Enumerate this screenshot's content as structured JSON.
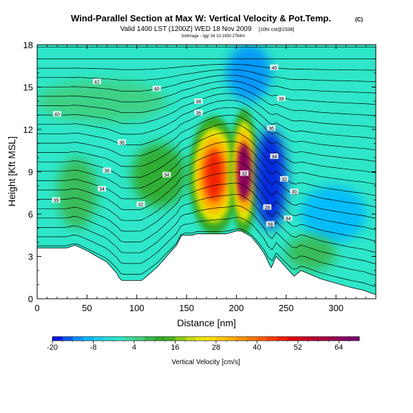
{
  "chart_data": {
    "type": "heatmap",
    "title": "Wind-Parallel Section at Max W: Vertical Velocity & Pot.Temp.",
    "title_mark": "(C)",
    "subtitle": "Valid 1400 LST (1200Z) WED 18 Nov 2009",
    "subtitle_note": "[10hr cst@2338]",
    "small_line": "bxtImage - /gg/ 34 10.1930 2764m",
    "xlabel": "Distance [nm]",
    "ylabel": "Height [Kft MSL]",
    "xlim": [
      0,
      340
    ],
    "ylim": [
      0,
      18
    ],
    "xticks": [
      0,
      50,
      100,
      150,
      200,
      250,
      300
    ],
    "yticks": [
      0,
      3,
      6,
      9,
      12,
      15,
      18
    ],
    "colorbar": {
      "label": "Vertical Velocity [cm/s]",
      "min": -20,
      "max": 70,
      "ticks": [
        -20,
        -8,
        4,
        16,
        28,
        40,
        52,
        64
      ],
      "bands": [
        {
          "from": -20,
          "to": -17,
          "color": "#0018e0"
        },
        {
          "from": -17,
          "to": -14,
          "color": "#0058f0"
        },
        {
          "from": -14,
          "to": -11,
          "color": "#0090ff"
        },
        {
          "from": -11,
          "to": -8,
          "color": "#00b8ff"
        },
        {
          "from": -8,
          "to": -5,
          "color": "#20cce8"
        },
        {
          "from": -5,
          "to": -2,
          "color": "#28dcd8"
        },
        {
          "from": -2,
          "to": 1,
          "color": "#2ee6c8"
        },
        {
          "from": 1,
          "to": 4,
          "color": "#3cdca0"
        },
        {
          "from": 4,
          "to": 7,
          "color": "#40d080"
        },
        {
          "from": 7,
          "to": 10,
          "color": "#3ab850"
        },
        {
          "from": 10,
          "to": 13,
          "color": "#30a828"
        },
        {
          "from": 13,
          "to": 16,
          "color": "#48b020"
        },
        {
          "from": 16,
          "to": 19,
          "color": "#88c818"
        },
        {
          "from": 19,
          "to": 22,
          "color": "#c0dc10"
        },
        {
          "from": 22,
          "to": 25,
          "color": "#e8e800"
        },
        {
          "from": 25,
          "to": 28,
          "color": "#ffe000"
        },
        {
          "from": 28,
          "to": 31,
          "color": "#ffc800"
        },
        {
          "from": 31,
          "to": 34,
          "color": "#ffb000"
        },
        {
          "from": 34,
          "to": 37,
          "color": "#ff9400"
        },
        {
          "from": 37,
          "to": 40,
          "color": "#ff7800"
        },
        {
          "from": 40,
          "to": 43,
          "color": "#ff5a00"
        },
        {
          "from": 43,
          "to": 46,
          "color": "#f83c00"
        },
        {
          "from": 46,
          "to": 49,
          "color": "#f02000"
        },
        {
          "from": 49,
          "to": 52,
          "color": "#e00010"
        },
        {
          "from": 52,
          "to": 55,
          "color": "#cc0020"
        },
        {
          "from": 55,
          "to": 58,
          "color": "#b80030"
        },
        {
          "from": 58,
          "to": 61,
          "color": "#a80040"
        },
        {
          "from": 61,
          "to": 64,
          "color": "#980050"
        },
        {
          "from": 64,
          "to": 67,
          "color": "#880060"
        },
        {
          "from": 67,
          "to": 70,
          "color": "#7a0070"
        }
      ]
    },
    "terrain_profile": {
      "x": [
        0,
        30,
        38,
        50,
        60,
        70,
        75,
        80,
        82,
        85,
        95,
        105,
        110,
        120,
        125,
        130,
        140,
        145,
        150,
        155,
        160,
        190,
        200,
        205,
        215,
        222,
        228,
        232,
        235,
        240,
        245,
        250,
        258,
        265,
        275,
        285,
        295,
        305,
        315,
        328,
        335,
        340
      ],
      "height": [
        3.6,
        3.6,
        3.8,
        3.4,
        3.0,
        2.6,
        2.2,
        1.8,
        1.5,
        1.3,
        1.3,
        1.3,
        1.6,
        2.2,
        2.6,
        3.0,
        3.8,
        4.5,
        4.5,
        4.5,
        4.6,
        4.6,
        4.8,
        4.8,
        4.4,
        3.8,
        3.2,
        2.6,
        2.2,
        3.0,
        2.6,
        2.2,
        1.6,
        2.0,
        1.7,
        1.4,
        1.2,
        1.0,
        0.8,
        0.6,
        0.4,
        0.3
      ]
    },
    "velocity_features": [
      {
        "name": "broad-cyan-background",
        "x_range": [
          0,
          340
        ],
        "y_range": [
          0,
          18
        ],
        "value": 0
      },
      {
        "name": "upper-left-green-layer",
        "x_range": [
          0,
          130
        ],
        "y_range": [
          12.5,
          15.5
        ],
        "value": 6
      },
      {
        "name": "left-green-lobe",
        "x_range": [
          20,
          60
        ],
        "y_range": [
          5,
          10
        ],
        "value": 8
      },
      {
        "name": "mid-green-lobe",
        "x_range": [
          95,
          150
        ],
        "y_range": [
          6.5,
          11
        ],
        "value": 10
      },
      {
        "name": "upper-blue-column",
        "x_range": [
          190,
          235
        ],
        "y_range": [
          14,
          18
        ],
        "value": -12
      },
      {
        "name": "left-updraft-core",
        "x_range": [
          155,
          200
        ],
        "y_range": [
          5,
          12.5
        ],
        "value": 48
      },
      {
        "name": "right-updraft-core",
        "x_range": [
          195,
          220
        ],
        "y_range": [
          5,
          13
        ],
        "value": 66
      },
      {
        "name": "lee-downdraft",
        "x_range": [
          218,
          250
        ],
        "y_range": [
          5,
          12
        ],
        "value": -18
      },
      {
        "name": "right-blue-pocket",
        "x_range": [
          265,
          330
        ],
        "y_range": [
          4,
          8
        ],
        "value": -10
      },
      {
        "name": "low-right-green",
        "x_range": [
          250,
          300
        ],
        "y_range": [
          2,
          4.5
        ],
        "value": 8
      }
    ],
    "contour_labels": [
      {
        "text": "42",
        "x": 60,
        "y": 15.4
      },
      {
        "text": "40",
        "x": 120,
        "y": 14.9
      },
      {
        "text": "40",
        "x": 238,
        "y": 16.4
      },
      {
        "text": "40",
        "x": 20,
        "y": 13.1
      },
      {
        "text": "38",
        "x": 162,
        "y": 14.0
      },
      {
        "text": "36",
        "x": 162,
        "y": 13.2
      },
      {
        "text": "38",
        "x": 245,
        "y": 14.2
      },
      {
        "text": "36",
        "x": 235,
        "y": 12.1
      },
      {
        "text": "38",
        "x": 85,
        "y": 11.1
      },
      {
        "text": "36",
        "x": 70,
        "y": 9.1
      },
      {
        "text": "34",
        "x": 65,
        "y": 7.8
      },
      {
        "text": "32",
        "x": 104,
        "y": 6.7
      },
      {
        "text": "34",
        "x": 130,
        "y": 8.8
      },
      {
        "text": "32",
        "x": 208,
        "y": 8.9
      },
      {
        "text": "34",
        "x": 238,
        "y": 10.1
      },
      {
        "text": "32",
        "x": 248,
        "y": 8.5
      },
      {
        "text": "30",
        "x": 258,
        "y": 7.6
      },
      {
        "text": "28",
        "x": 231,
        "y": 6.5
      },
      {
        "text": "34",
        "x": 252,
        "y": 5.7
      },
      {
        "text": "38",
        "x": 234,
        "y": 5.3
      },
      {
        "text": "35",
        "x": 19,
        "y": 7.0
      }
    ]
  }
}
